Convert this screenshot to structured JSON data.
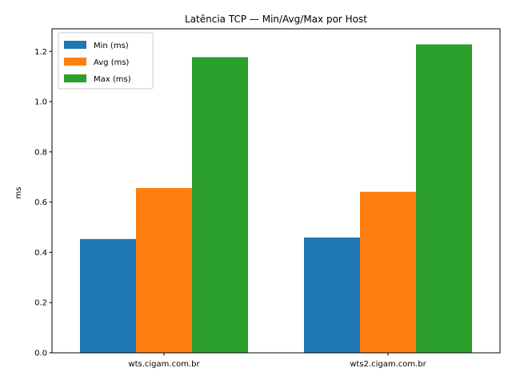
{
  "chart_data": {
    "type": "bar",
    "title": "Latência TCP — Min/Avg/Max por Host",
    "xlabel": "",
    "ylabel": "ms",
    "categories": [
      "wts.cigam.com.br",
      "wts2.cigam.com.br"
    ],
    "series": [
      {
        "name": "Min (ms)",
        "values": [
          0.453,
          0.459
        ],
        "color": "#1f77b4"
      },
      {
        "name": "Avg (ms)",
        "values": [
          0.656,
          0.641
        ],
        "color": "#ff7f0e"
      },
      {
        "name": "Max (ms)",
        "values": [
          1.177,
          1.228
        ],
        "color": "#2ca02c"
      }
    ],
    "ylim": [
      0,
      1.29
    ],
    "yticks": [
      "0.0",
      "0.2",
      "0.4",
      "0.6",
      "0.8",
      "1.0",
      "1.2"
    ],
    "grid": false,
    "legend": "upper-left"
  }
}
